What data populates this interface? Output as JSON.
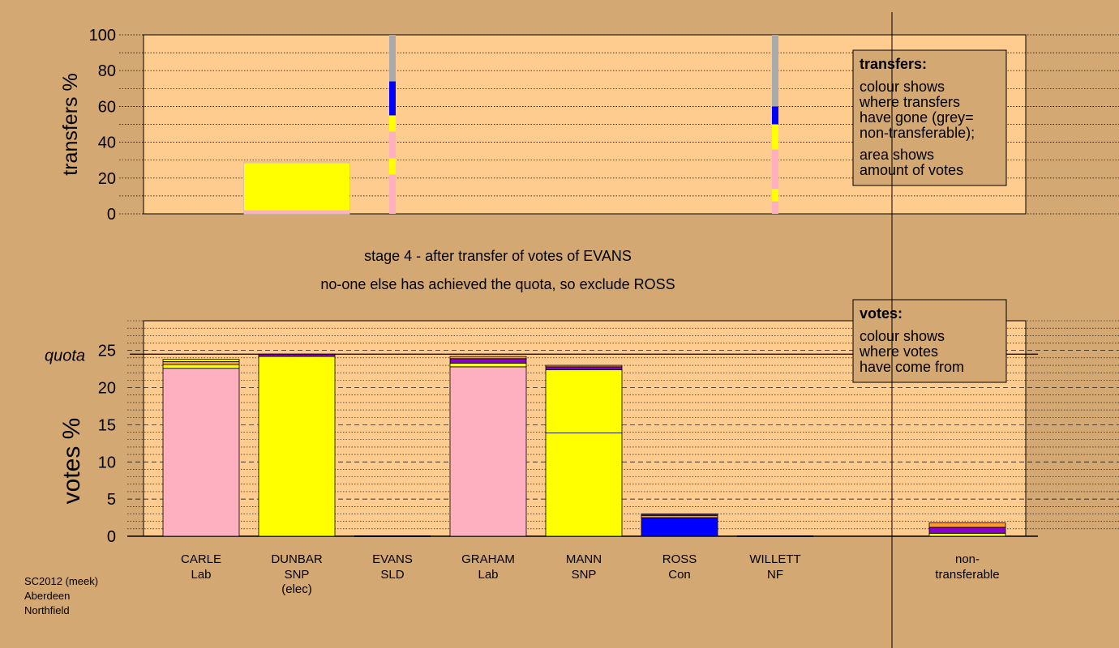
{
  "title": {
    "line1": "stage 4 - after transfer of votes of EVANS",
    "line2": "no-one else has achieved the quota, so exclude ROSS"
  },
  "footer": {
    "line1": "SC2012 (meek)",
    "line2": "Aberdeen",
    "line3": "Northfield"
  },
  "colors": {
    "background": "#d4a872",
    "panel": "#ffcc8f",
    "lab": "#ffb0c0",
    "snp": "#ffff00",
    "con": "#0000ff",
    "nf": "#8800cc",
    "sld": "#ff9933",
    "nontransferable": "#aaaaaa"
  },
  "chart_data": [
    {
      "type": "bar",
      "ylabel": "transfers %",
      "ylim": [
        0,
        100
      ],
      "yticks": [
        0,
        20,
        40,
        60,
        80,
        100
      ],
      "legend": {
        "title": "transfers:",
        "lines": [
          "colour shows",
          "where transfers",
          "have gone (grey=",
          "non-transferable);",
          "area shows",
          "amount of votes"
        ]
      },
      "columns": [
        {
          "candidate": "DUNBAR",
          "kind": "block",
          "segments": [
            {
              "party": "lab",
              "from": 0,
              "to": 2
            },
            {
              "party": "snp",
              "from": 2,
              "to": 28
            }
          ]
        },
        {
          "candidate": "EVANS",
          "kind": "strip",
          "segments": [
            {
              "party": "lab",
              "from": 0,
              "to": 22
            },
            {
              "party": "snp",
              "from": 22,
              "to": 31
            },
            {
              "party": "lab",
              "from": 31,
              "to": 46
            },
            {
              "party": "snp",
              "from": 46,
              "to": 55
            },
            {
              "party": "con",
              "from": 55,
              "to": 74
            },
            {
              "party": "nontransferable",
              "from": 74,
              "to": 100
            }
          ]
        },
        {
          "candidate": "WILLETT",
          "kind": "strip",
          "segments": [
            {
              "party": "lab",
              "from": 0,
              "to": 7
            },
            {
              "party": "snp",
              "from": 7,
              "to": 14
            },
            {
              "party": "lab",
              "from": 14,
              "to": 36
            },
            {
              "party": "snp",
              "from": 36,
              "to": 50
            },
            {
              "party": "con",
              "from": 50,
              "to": 60
            },
            {
              "party": "nontransferable",
              "from": 60,
              "to": 100
            }
          ]
        }
      ]
    },
    {
      "type": "bar",
      "ylabel": "votes %",
      "ylim": [
        0,
        29
      ],
      "yticks": [
        0,
        5,
        10,
        15,
        20,
        25
      ],
      "quota": 24.5,
      "quota_label": "quota",
      "legend": {
        "title": "votes:",
        "lines": [
          "colour shows",
          "where votes",
          "have come from"
        ]
      },
      "candidates": [
        {
          "name": "CARLE",
          "party": "Lab",
          "note": "",
          "segments": [
            {
              "party": "lab",
              "value": 22.6
            },
            {
              "party": "snp",
              "value": 0.5
            },
            {
              "party": "sld",
              "value": 0.4
            },
            {
              "party": "snp",
              "value": 0.3
            }
          ]
        },
        {
          "name": "DUNBAR",
          "party": "SNP",
          "note": "(elec)",
          "segments": [
            {
              "party": "snp",
              "value": 24.2
            },
            {
              "party": "nf",
              "value": 0.3
            }
          ]
        },
        {
          "name": "EVANS",
          "party": "SLD",
          "note": "",
          "segments": []
        },
        {
          "name": "GRAHAM",
          "party": "Lab",
          "note": "",
          "segments": [
            {
              "party": "lab",
              "value": 22.8
            },
            {
              "party": "snp",
              "value": 0.5
            },
            {
              "party": "nf",
              "value": 0.6
            },
            {
              "party": "sld",
              "value": 0.3
            }
          ]
        },
        {
          "name": "MANN",
          "party": "SNP",
          "note": "",
          "segments": [
            {
              "party": "snp",
              "value": 13.9
            },
            {
              "party": "snp",
              "value": 8.5
            },
            {
              "party": "nf",
              "value": 0.4
            },
            {
              "party": "sld",
              "value": 0.2
            }
          ]
        },
        {
          "name": "ROSS",
          "party": "Con",
          "note": "",
          "segments": [
            {
              "party": "con",
              "value": 2.5
            },
            {
              "party": "sld",
              "value": 0.3
            },
            {
              "party": "nf",
              "value": 0.2
            }
          ]
        },
        {
          "name": "WILLETT",
          "party": "NF",
          "note": "",
          "segments": []
        },
        {
          "name": "non-",
          "party": "transferable",
          "note": "",
          "segments": [
            {
              "party": "snp",
              "value": 0.4
            },
            {
              "party": "nf",
              "value": 0.8
            },
            {
              "party": "sld",
              "value": 0.6
            }
          ]
        }
      ]
    }
  ]
}
